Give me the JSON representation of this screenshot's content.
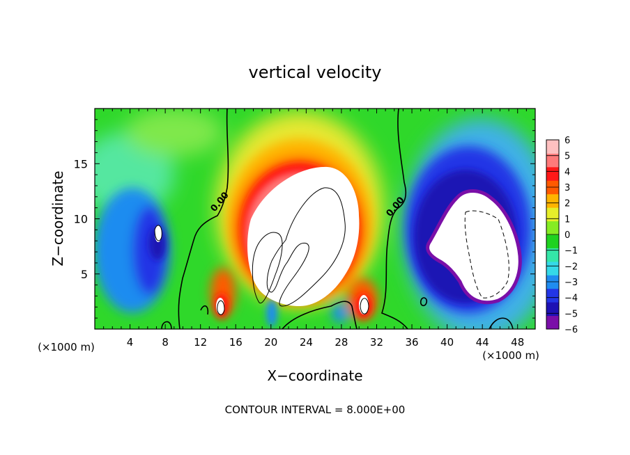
{
  "chart_data": {
    "type": "heatmap",
    "title": "vertical velocity",
    "xlabel": "X−coordinate",
    "ylabel": "Z−coordinate",
    "x_unit_left": "(×1000 m)",
    "x_unit_right": "(×1000 m)",
    "x_ticks": [
      "4",
      "8",
      "12",
      "16",
      "20",
      "24",
      "28",
      "32",
      "36",
      "40",
      "44",
      "48"
    ],
    "y_ticks": [
      "5",
      "10",
      "15"
    ],
    "xlim": [
      0,
      50
    ],
    "ylim": [
      0,
      20
    ],
    "colorbar": {
      "labels": [
        "6",
        "5",
        "4",
        "3",
        "2",
        "1",
        "0",
        "−1",
        "−2",
        "−3",
        "−4",
        "−5",
        "−6"
      ],
      "range": [
        -6,
        6
      ],
      "colors": [
        "#7a0fa8",
        "#1e12b4",
        "#2336e6",
        "#1f8cf0",
        "#35d9e8",
        "#35e6a8",
        "#1fd21f",
        "#86ec24",
        "#e6ee2a",
        "#ffb400",
        "#ff5a00",
        "#ff1818",
        "#ff7a7a",
        "#ffc0c0"
      ]
    },
    "contour_label": "0.00",
    "footer": "CONTOUR INTERVAL = 8.000E+00",
    "features": [
      {
        "kind": "updraft-core",
        "x": [
          18,
          31
        ],
        "z": [
          2,
          14
        ],
        "peak": "> 6"
      },
      {
        "kind": "downdraft-core",
        "x": [
          41,
          48
        ],
        "z": [
          2,
          12
        ],
        "min": "< -6"
      },
      {
        "kind": "downdraft-region",
        "x": [
          0,
          8
        ],
        "z": [
          1,
          13
        ],
        "min": -5
      }
    ]
  }
}
